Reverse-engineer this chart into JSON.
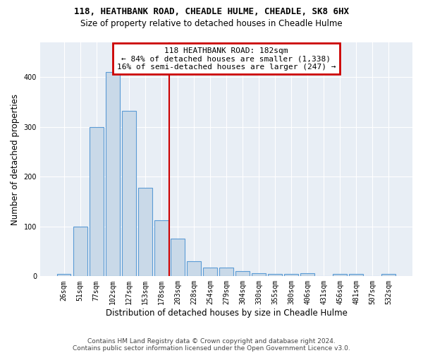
{
  "title1": "118, HEATHBANK ROAD, CHEADLE HULME, CHEADLE, SK8 6HX",
  "title2": "Size of property relative to detached houses in Cheadle Hulme",
  "xlabel": "Distribution of detached houses by size in Cheadle Hulme",
  "ylabel": "Number of detached properties",
  "categories": [
    "26sqm",
    "51sqm",
    "77sqm",
    "102sqm",
    "127sqm",
    "153sqm",
    "178sqm",
    "203sqm",
    "228sqm",
    "254sqm",
    "279sqm",
    "304sqm",
    "330sqm",
    "355sqm",
    "380sqm",
    "406sqm",
    "431sqm",
    "456sqm",
    "481sqm",
    "507sqm",
    "532sqm"
  ],
  "values": [
    5,
    100,
    300,
    410,
    333,
    178,
    113,
    76,
    30,
    18,
    18,
    10,
    6,
    5,
    5,
    6,
    0,
    5,
    5,
    0,
    5
  ],
  "bar_color": "#c9d9e8",
  "bar_edge_color": "#5b9bd5",
  "vline_index": 6.5,
  "vline_color": "#cc0000",
  "annotation_line1": "118 HEATHBANK ROAD: 182sqm",
  "annotation_line2": "← 84% of detached houses are smaller (1,338)",
  "annotation_line3": "16% of semi-detached houses are larger (247) →",
  "annotation_box_facecolor": "#ffffff",
  "annotation_box_edgecolor": "#cc0000",
  "ylim": [
    0,
    470
  ],
  "bg_color": "#ffffff",
  "plot_bg_color": "#e8eef5",
  "footer1": "Contains HM Land Registry data © Crown copyright and database right 2024.",
  "footer2": "Contains public sector information licensed under the Open Government Licence v3.0."
}
